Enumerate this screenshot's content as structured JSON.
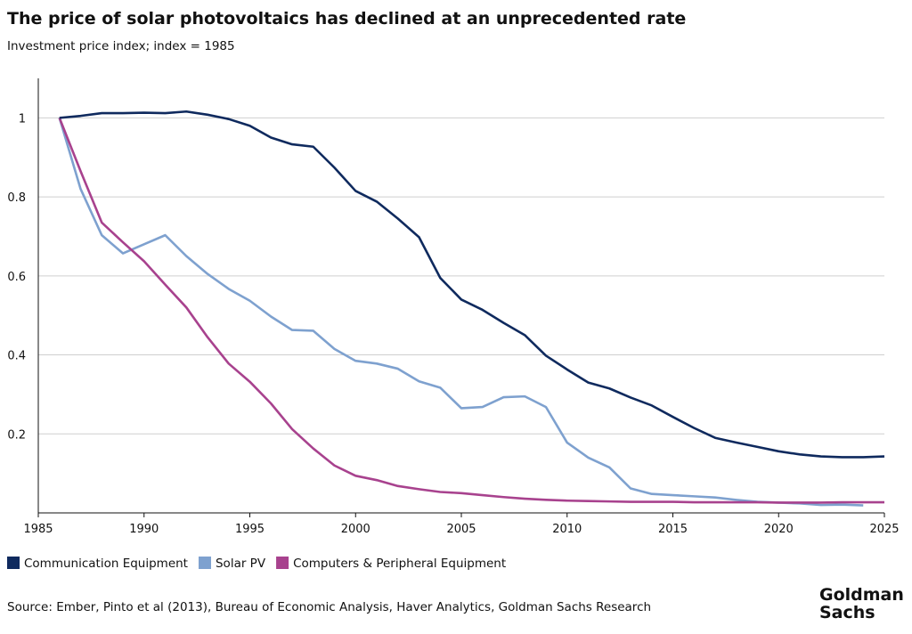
{
  "chart_data": {
    "type": "line",
    "title": "The price of solar photovoltaics has declined at an unprecedented rate",
    "subtitle": "Investment price index; index = 1985",
    "source": "Source: Ember, Pinto et al (2013), Bureau of Economic Analysis, Haver Analytics, Goldman Sachs Research",
    "logo": [
      "Goldman",
      "Sachs"
    ],
    "x": [
      1986,
      1987,
      1988,
      1989,
      1990,
      1991,
      1992,
      1993,
      1994,
      1995,
      1996,
      1997,
      1998,
      1999,
      2000,
      2001,
      2002,
      2003,
      2004,
      2005,
      2006,
      2007,
      2008,
      2009,
      2010,
      2011,
      2012,
      2013,
      2014,
      2015,
      2016,
      2017,
      2018,
      2019,
      2020,
      2021,
      2022,
      2023,
      2024,
      2025
    ],
    "xlim": [
      1985,
      2025
    ],
    "xticks": [
      1985,
      1990,
      1995,
      2000,
      2005,
      2010,
      2015,
      2020,
      2025
    ],
    "ylim": [
      0,
      1.1
    ],
    "yticks": [
      0.2,
      0.4,
      0.6,
      0.8,
      1
    ],
    "grid": true,
    "legend": "bottom-left",
    "series": [
      {
        "name": "Communication Equipment",
        "color": "#0f2a5e",
        "values": [
          1.0,
          1.005,
          1.012,
          1.012,
          1.013,
          1.012,
          1.016,
          1.008,
          0.997,
          0.98,
          0.95,
          0.933,
          0.927,
          0.874,
          0.815,
          0.788,
          0.745,
          0.698,
          0.595,
          0.54,
          0.514,
          0.481,
          0.45,
          0.398,
          0.363,
          0.33,
          0.315,
          0.292,
          0.272,
          0.243,
          0.215,
          0.19,
          0.178,
          0.167,
          0.156,
          0.148,
          0.143,
          0.141,
          0.141,
          0.143
        ]
      },
      {
        "name": "Solar PV",
        "color": "#7ea1cf",
        "values": [
          1.0,
          0.82,
          0.703,
          0.657,
          0.68,
          0.703,
          0.65,
          0.605,
          0.567,
          0.537,
          0.497,
          0.463,
          0.461,
          0.415,
          0.385,
          0.378,
          0.365,
          0.333,
          0.317,
          0.265,
          0.268,
          0.293,
          0.295,
          0.268,
          0.178,
          0.14,
          0.115,
          0.062,
          0.048,
          0.045,
          0.042,
          0.039,
          0.033,
          0.028,
          0.026,
          0.024,
          0.02,
          0.021,
          0.019,
          null
        ]
      },
      {
        "name": "Computers & Peripheral Equipment",
        "color": "#a8428e",
        "values": [
          1.0,
          0.865,
          0.735,
          0.685,
          0.637,
          0.578,
          0.52,
          0.445,
          0.378,
          0.332,
          0.277,
          0.212,
          0.163,
          0.12,
          0.094,
          0.083,
          0.068,
          0.06,
          0.053,
          0.05,
          0.045,
          0.04,
          0.036,
          0.033,
          0.031,
          0.03,
          0.029,
          0.028,
          0.028,
          0.028,
          0.027,
          0.027,
          0.027,
          0.027,
          0.026,
          0.026,
          0.026,
          0.027,
          0.027,
          0.027
        ]
      }
    ]
  }
}
